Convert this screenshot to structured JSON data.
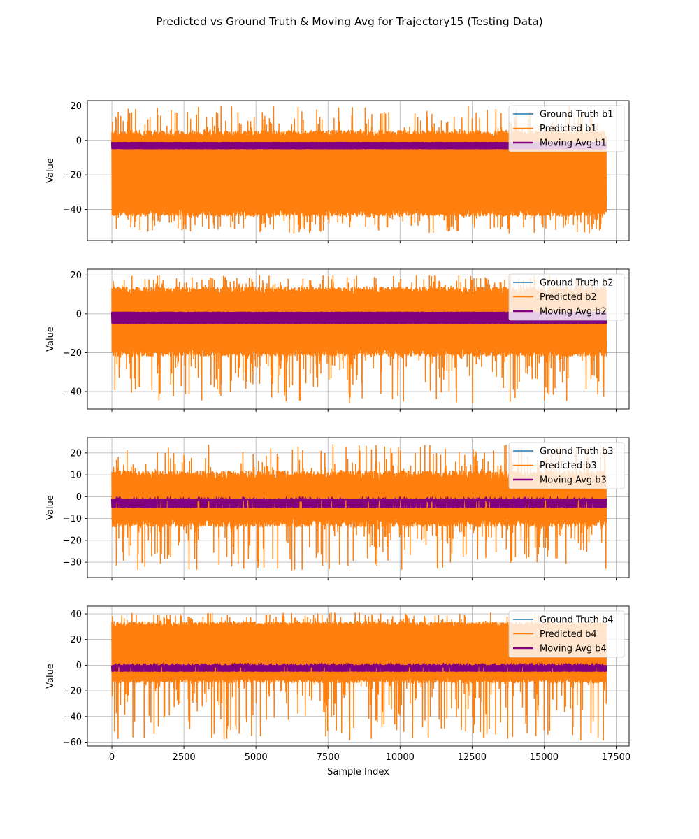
{
  "figure": {
    "title": "Predicted vs Ground Truth & Moving Avg for Trajectory15 (Testing Data)"
  },
  "colors": {
    "ground_truth": "#1f77b4",
    "predicted": "#ff7f0e",
    "moving_avg": "#800080",
    "grid": "#b0b0b0"
  },
  "chart_data": [
    {
      "type": "line",
      "xlabel": "",
      "ylabel": "Value",
      "xlim": [
        -850,
        17950
      ],
      "ylim": [
        -58,
        23
      ],
      "x_ticks": [
        0,
        2500,
        5000,
        7500,
        10000,
        12500,
        15000,
        17500
      ],
      "x_tick_labels_visible": false,
      "y_ticks": [
        20,
        0,
        -20,
        -40
      ],
      "grid": true,
      "legend_position": "top-right",
      "n_samples": 17150,
      "series": [
        {
          "name": "Ground Truth b1",
          "role": "ground_truth",
          "baseline": -2,
          "low": -4,
          "high": 0
        },
        {
          "name": "Predicted b1",
          "role": "predicted",
          "typical_low": -42,
          "typical_high": 4,
          "min": -54,
          "max": 20
        },
        {
          "name": "Moving Avg b1",
          "role": "moving_avg",
          "typical_low": -5,
          "typical_high": -1
        }
      ]
    },
    {
      "type": "line",
      "xlabel": "",
      "ylabel": "Value",
      "xlim": [
        -850,
        17950
      ],
      "ylim": [
        -49,
        23
      ],
      "x_ticks": [
        0,
        2500,
        5000,
        7500,
        10000,
        12500,
        15000,
        17500
      ],
      "x_tick_labels_visible": false,
      "y_ticks": [
        20,
        0,
        -20,
        -40
      ],
      "grid": true,
      "legend_position": "top-right",
      "n_samples": 17150,
      "series": [
        {
          "name": "Ground Truth b2",
          "role": "ground_truth",
          "baseline": -2,
          "low": -5,
          "high": 1
        },
        {
          "name": "Predicted b2",
          "role": "predicted",
          "typical_low": -20,
          "typical_high": 12,
          "min": -46,
          "max": 20
        },
        {
          "name": "Moving Avg b2",
          "role": "moving_avg",
          "typical_low": -5,
          "typical_high": 1
        }
      ]
    },
    {
      "type": "line",
      "xlabel": "",
      "ylabel": "Value",
      "xlim": [
        -850,
        17950
      ],
      "ylim": [
        -37,
        27
      ],
      "x_ticks": [
        0,
        2500,
        5000,
        7500,
        10000,
        12500,
        15000,
        17500
      ],
      "x_tick_labels_visible": false,
      "y_ticks": [
        20,
        10,
        0,
        -10,
        -20,
        -30
      ],
      "grid": true,
      "legend_position": "top-right",
      "n_samples": 17150,
      "series": [
        {
          "name": "Ground Truth b3",
          "role": "ground_truth",
          "baseline": -1,
          "low": -4,
          "high": 0
        },
        {
          "name": "Predicted b3",
          "role": "predicted",
          "typical_low": -12,
          "typical_high": 10,
          "min": -34,
          "max": 24
        },
        {
          "name": "Moving Avg b3",
          "role": "moving_avg",
          "typical_low": -5,
          "typical_high": -1
        }
      ]
    },
    {
      "type": "line",
      "xlabel": "Sample Index",
      "ylabel": "Value",
      "xlim": [
        -850,
        17950
      ],
      "ylim": [
        -63,
        46
      ],
      "x_ticks": [
        0,
        2500,
        5000,
        7500,
        10000,
        12500,
        15000,
        17500
      ],
      "x_tick_labels_visible": true,
      "y_ticks": [
        40,
        20,
        0,
        -20,
        -40,
        -60
      ],
      "grid": true,
      "legend_position": "top-right",
      "n_samples": 17150,
      "series": [
        {
          "name": "Ground Truth b4",
          "role": "ground_truth",
          "baseline": 0,
          "low": -4,
          "high": 0
        },
        {
          "name": "Predicted b4",
          "role": "predicted",
          "typical_low": -12,
          "typical_high": 32,
          "min": -59,
          "max": 41
        },
        {
          "name": "Moving Avg b4",
          "role": "moving_avg",
          "typical_low": -5,
          "typical_high": 0
        }
      ]
    }
  ]
}
